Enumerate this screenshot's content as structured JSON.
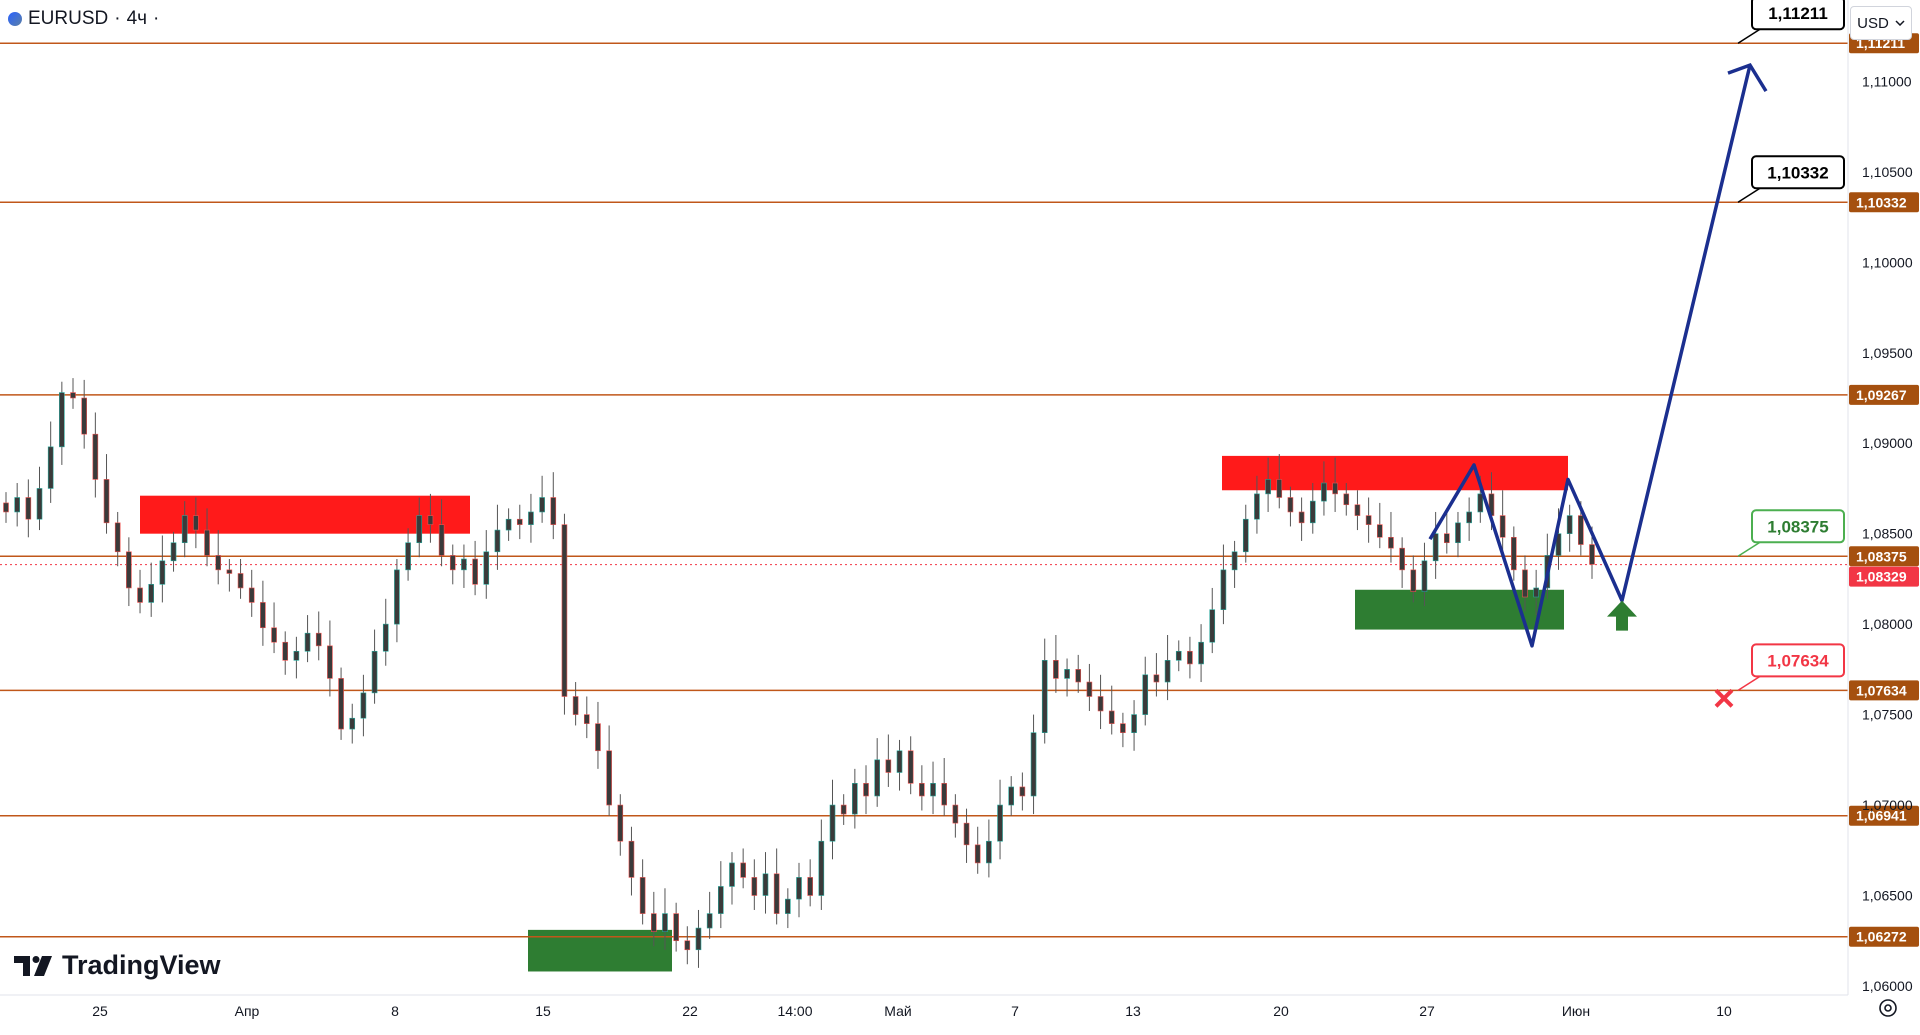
{
  "header": {
    "symbol": "EURUSD",
    "separator": "·",
    "interval": "4ч",
    "dot": "·"
  },
  "currency": {
    "label": "USD",
    "chevron_icon": "chevron-down-icon"
  },
  "logo": {
    "text": "TradingView",
    "icon": "tradingview-logo-icon"
  },
  "settings": {
    "icon": "gear-icon"
  },
  "colors": {
    "level": "#c0571a",
    "bull": "#4caf50",
    "bear": "#f23645",
    "zone_red": "#ff1a1a",
    "zone_green": "#2e7d32",
    "path": "#1b2f8f",
    "label_bg": "#a5500f"
  },
  "chart_data": {
    "type": "candlestick",
    "symbol": "EURUSD",
    "interval": "4ч",
    "currency": "USD",
    "ylim": [
      1.0595,
      1.1145
    ],
    "y_ticks": [
      "1,06000",
      "1,06500",
      "1,07000",
      "1,07500",
      "1,08000",
      "1,08500",
      "1,09000",
      "1,09500",
      "1,10000",
      "1,10500",
      "1,11000"
    ],
    "x_ticks": [
      "25",
      "Апр",
      "8",
      "15",
      "22",
      "14:00",
      "Май",
      "7",
      "13",
      "20",
      "27",
      "Июн",
      "10"
    ],
    "levels": [
      {
        "value": 1.11211,
        "label": "1,11211"
      },
      {
        "value": 1.10332,
        "label": "1,10332"
      },
      {
        "value": 1.09267,
        "label": "1,09267"
      },
      {
        "value": 1.08375,
        "label": "1,08375"
      },
      {
        "value": 1.07634,
        "label": "1,07634"
      },
      {
        "value": 1.06941,
        "label": "1,06941"
      },
      {
        "value": 1.06272,
        "label": "1,06272"
      }
    ],
    "current_price": {
      "value": 1.08329,
      "label": "1,08329"
    },
    "callouts": [
      {
        "label": "1,11211",
        "value": 1.11211,
        "style": "dark"
      },
      {
        "label": "1,10332",
        "value": 1.10332,
        "style": "dark"
      },
      {
        "label": "1,08375",
        "value": 1.08375,
        "style": "green"
      },
      {
        "label": "1,07634",
        "value": 1.07634,
        "style": "red"
      }
    ],
    "zones": [
      {
        "kind": "resistance",
        "from": 1.085,
        "to": 1.0871
      },
      {
        "kind": "resistance",
        "from": 1.0874,
        "to": 1.0893
      },
      {
        "kind": "support",
        "from": 1.0797,
        "to": 1.0819
      },
      {
        "kind": "support",
        "from": 1.0608,
        "to": 1.0631
      }
    ],
    "projection": [
      1.0847,
      1.0888,
      1.0788,
      1.088,
      1.0813,
      1.1109
    ],
    "closes": [
      1.0862,
      1.087,
      1.0858,
      1.0875,
      1.0898,
      1.0928,
      1.0925,
      1.0905,
      1.088,
      1.0856,
      1.084,
      1.082,
      1.0812,
      1.0822,
      1.0835,
      1.0845,
      1.086,
      1.0852,
      1.0838,
      1.083,
      1.0828,
      1.082,
      1.0812,
      1.0798,
      1.079,
      1.078,
      1.0785,
      1.0795,
      1.0788,
      1.077,
      1.0742,
      1.0748,
      1.0762,
      1.0785,
      1.08,
      1.083,
      1.0845,
      1.086,
      1.0855,
      1.0838,
      1.083,
      1.0836,
      1.0822,
      1.084,
      1.0852,
      1.0858,
      1.0855,
      1.0862,
      1.087,
      1.0855,
      1.076,
      1.075,
      1.0745,
      1.073,
      1.07,
      1.068,
      1.066,
      1.064,
      1.063,
      1.064,
      1.0625,
      1.062,
      1.0632,
      1.064,
      1.0655,
      1.0668,
      1.066,
      1.065,
      1.0662,
      1.064,
      1.0648,
      1.066,
      1.065,
      1.068,
      1.07,
      1.0695,
      1.0712,
      1.0705,
      1.0725,
      1.0718,
      1.073,
      1.0712,
      1.0705,
      1.0712,
      1.07,
      1.069,
      1.0678,
      1.0668,
      1.068,
      1.07,
      1.071,
      1.0705,
      1.074,
      1.078,
      1.077,
      1.0775,
      1.0768,
      1.076,
      1.0752,
      1.0745,
      1.074,
      1.075,
      1.0772,
      1.0768,
      1.078,
      1.0785,
      1.0778,
      1.079,
      1.0808,
      1.083,
      1.084,
      1.0858,
      1.0872,
      1.088,
      1.087,
      1.0862,
      1.0856,
      1.0868,
      1.0878,
      1.0872,
      1.0866,
      1.086,
      1.0855,
      1.0848,
      1.0842,
      1.083,
      1.0818,
      1.0835,
      1.085,
      1.0845,
      1.0856,
      1.0862,
      1.0872,
      1.086,
      1.0848,
      1.083,
      1.0815,
      1.082,
      1.0838,
      1.085,
      1.086,
      1.0844,
      1.0833
    ]
  }
}
